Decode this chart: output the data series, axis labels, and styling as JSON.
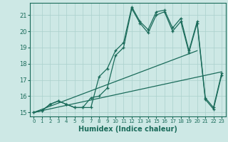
{
  "xlabel": "Humidex (Indice chaleur)",
  "background_color": "#cde8e5",
  "grid_color": "#aad0cc",
  "line_color": "#1a6b5a",
  "xlim": [
    -0.5,
    23.5
  ],
  "ylim": [
    14.75,
    21.75
  ],
  "yticks": [
    15,
    16,
    17,
    18,
    19,
    20,
    21
  ],
  "xticks": [
    0,
    1,
    2,
    3,
    4,
    5,
    6,
    7,
    8,
    9,
    10,
    11,
    12,
    13,
    14,
    15,
    16,
    17,
    18,
    19,
    20,
    21,
    22,
    23
  ],
  "line1_x": [
    0,
    1,
    2,
    3,
    4,
    5,
    6,
    7,
    8,
    9,
    10,
    11,
    12,
    13,
    14,
    15,
    16,
    17,
    18,
    19,
    20,
    21,
    22,
    23
  ],
  "line1_y": [
    15.0,
    15.1,
    15.5,
    15.7,
    15.5,
    15.3,
    15.3,
    15.3,
    17.2,
    17.7,
    18.8,
    19.3,
    21.5,
    20.6,
    20.1,
    21.2,
    21.3,
    20.2,
    20.8,
    18.8,
    20.6,
    15.9,
    15.3,
    17.4
  ],
  "line2_x": [
    0,
    1,
    2,
    3,
    4,
    5,
    6,
    7,
    8,
    9,
    10,
    11,
    12,
    13,
    14,
    15,
    16,
    17,
    18,
    19,
    20,
    21,
    22,
    23
  ],
  "line2_y": [
    15.0,
    15.1,
    15.5,
    15.7,
    15.5,
    15.3,
    15.3,
    15.9,
    16.0,
    16.5,
    18.5,
    19.0,
    21.4,
    20.5,
    19.9,
    21.0,
    21.2,
    20.0,
    20.6,
    18.7,
    20.5,
    15.8,
    15.2,
    17.3
  ],
  "line3_x": [
    0,
    23
  ],
  "line3_y": [
    15.0,
    17.5
  ],
  "line4_x": [
    0,
    20
  ],
  "line4_y": [
    15.0,
    18.8
  ]
}
